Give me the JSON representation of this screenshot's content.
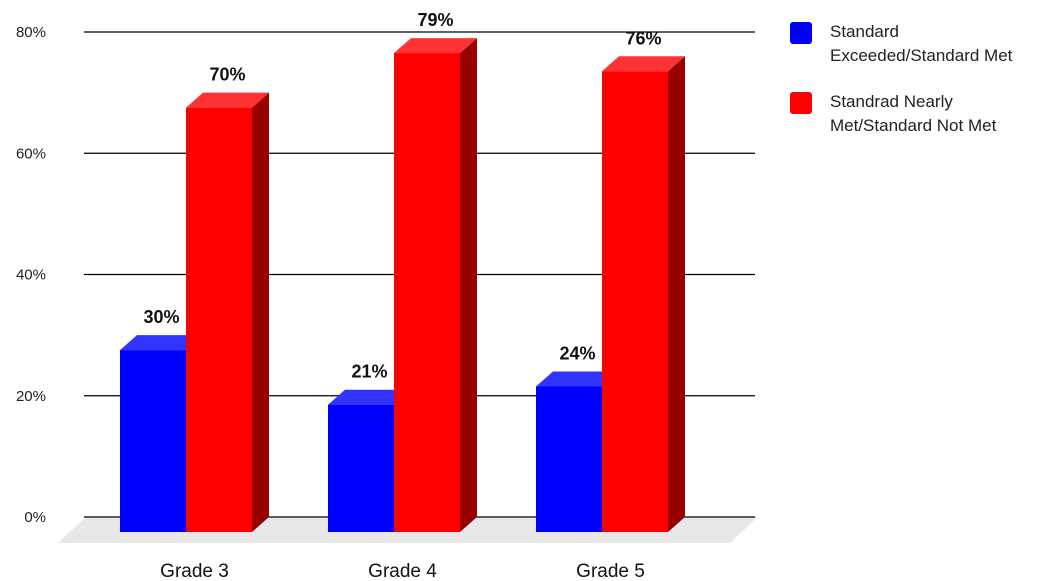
{
  "chart_data": {
    "type": "bar",
    "title": "",
    "xlabel": "",
    "ylabel": "",
    "categories": [
      "Grade 3",
      "Grade 4",
      "Grade 5"
    ],
    "series": [
      {
        "name": "Standard Exceeded/Standard Met",
        "values": [
          30,
          21,
          24
        ],
        "labels": [
          "30%",
          "21%",
          "24%"
        ],
        "color": "#0000ff"
      },
      {
        "name": "Standrad Nearly Met/Standard Not Met",
        "values": [
          70,
          79,
          76
        ],
        "labels": [
          "70%",
          "79%",
          "76%"
        ],
        "color": "#ff0000"
      }
    ],
    "ylim": [
      0,
      80
    ],
    "yticks": [
      0,
      20,
      40,
      60,
      80
    ],
    "ytick_labels": [
      "0%",
      "20%",
      "40%",
      "60%",
      "80%"
    ],
    "grid": true,
    "legend_position": "right",
    "style": "3d"
  }
}
